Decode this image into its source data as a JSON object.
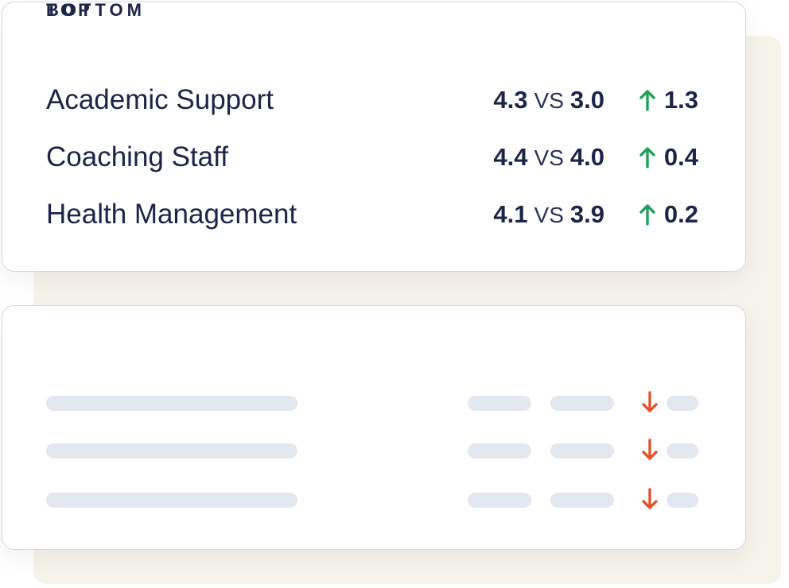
{
  "colors": {
    "text": "#1c2449",
    "positive": "#22a05a",
    "negative": "#e2532d",
    "placeholder": "#e3e7ef",
    "backdrop": "#f6f3ea"
  },
  "top": {
    "title": "TOP",
    "vs_label": "VS",
    "rows": [
      {
        "label": "Academic Support",
        "score": "4.3",
        "compare": "3.0",
        "delta": "1.3",
        "trend_icon": "arrow-up-icon"
      },
      {
        "label": "Coaching Staff",
        "score": "4.4",
        "compare": "4.0",
        "delta": "0.4",
        "trend_icon": "arrow-up-icon"
      },
      {
        "label": "Health Management",
        "score": "4.1",
        "compare": "3.9",
        "delta": "0.2",
        "trend_icon": "arrow-up-icon"
      }
    ]
  },
  "bottom": {
    "title": "BOTTOM",
    "rows": [
      {
        "trend_icon": "arrow-down-icon"
      },
      {
        "trend_icon": "arrow-down-icon"
      },
      {
        "trend_icon": "arrow-down-icon"
      }
    ]
  }
}
